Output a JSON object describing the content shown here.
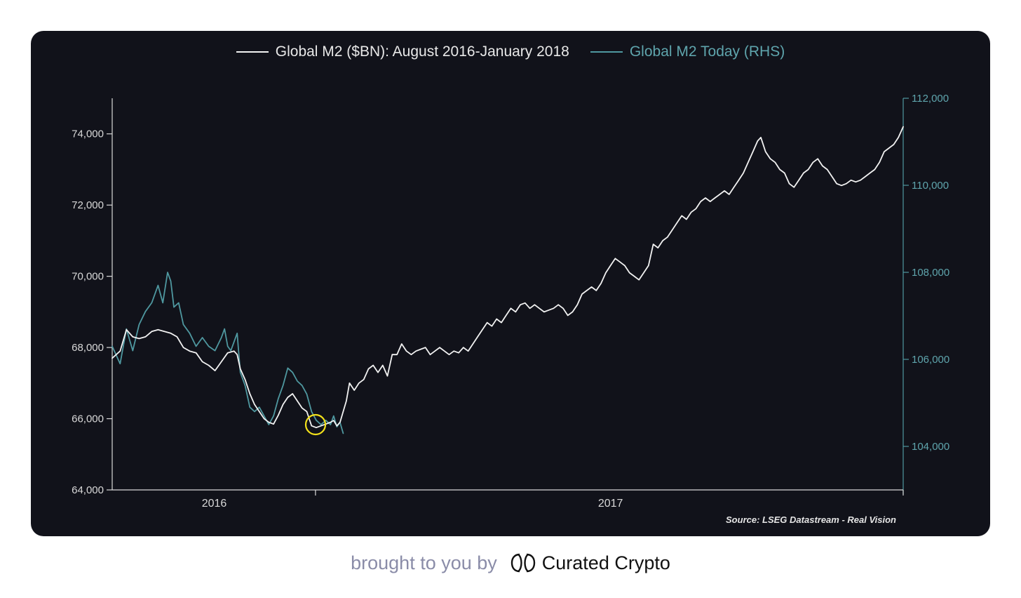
{
  "colors": {
    "background": "#11121a",
    "primary_line": "#f2f2f2",
    "secondary_line": "#4f98a0",
    "axis_left": "#d9d9d9",
    "axis_right": "#4f98a0",
    "highlight_circle": "#f3e11a",
    "footer_text": "#8a8ca8"
  },
  "chart_data": {
    "type": "line",
    "title": "",
    "legend_position": "top-center",
    "x_axis": {
      "range": [
        0,
        1
      ],
      "ticks": [
        {
          "value": 0.129,
          "label": "2016"
        },
        {
          "value": 0.257,
          "label": ""
        },
        {
          "value": 0.63,
          "label": "2017"
        }
      ]
    },
    "y_left": {
      "range": [
        64000,
        75000
      ],
      "ticks": [
        64000,
        66000,
        68000,
        70000,
        72000,
        74000
      ],
      "tick_labels": [
        "64,000",
        "66,000",
        "68,000",
        "70,000",
        "72,000",
        "74,000"
      ]
    },
    "y_right": {
      "range": [
        103000,
        112000
      ],
      "ticks": [
        104000,
        106000,
        108000,
        110000,
        112000
      ],
      "tick_labels": [
        "104,000",
        "106,000",
        "108,000",
        "110,000",
        "112,000"
      ]
    },
    "series": [
      {
        "name": "Global M2 ($BN): August 2016-January 2018",
        "axis": "left",
        "points": [
          [
            0.0,
            67700
          ],
          [
            0.01,
            67900
          ],
          [
            0.018,
            68500
          ],
          [
            0.026,
            68300
          ],
          [
            0.034,
            68250
          ],
          [
            0.042,
            68300
          ],
          [
            0.05,
            68450
          ],
          [
            0.058,
            68500
          ],
          [
            0.066,
            68450
          ],
          [
            0.074,
            68400
          ],
          [
            0.082,
            68300
          ],
          [
            0.09,
            68000
          ],
          [
            0.098,
            67900
          ],
          [
            0.106,
            67850
          ],
          [
            0.114,
            67600
          ],
          [
            0.122,
            67500
          ],
          [
            0.13,
            67350
          ],
          [
            0.138,
            67600
          ],
          [
            0.146,
            67850
          ],
          [
            0.154,
            67900
          ],
          [
            0.158,
            67800
          ],
          [
            0.162,
            67400
          ],
          [
            0.168,
            67100
          ],
          [
            0.174,
            66700
          ],
          [
            0.18,
            66400
          ],
          [
            0.186,
            66200
          ],
          [
            0.192,
            66000
          ],
          [
            0.198,
            65900
          ],
          [
            0.204,
            65850
          ],
          [
            0.21,
            66100
          ],
          [
            0.216,
            66400
          ],
          [
            0.222,
            66600
          ],
          [
            0.228,
            66700
          ],
          [
            0.234,
            66500
          ],
          [
            0.24,
            66300
          ],
          [
            0.246,
            66200
          ],
          [
            0.252,
            65800
          ],
          [
            0.258,
            65750
          ],
          [
            0.264,
            65800
          ],
          [
            0.27,
            65850
          ],
          [
            0.276,
            65900
          ],
          [
            0.28,
            65950
          ],
          [
            0.284,
            65800
          ],
          [
            0.288,
            65900
          ],
          [
            0.292,
            66200
          ],
          [
            0.296,
            66500
          ],
          [
            0.3,
            67000
          ],
          [
            0.306,
            66800
          ],
          [
            0.312,
            67000
          ],
          [
            0.318,
            67100
          ],
          [
            0.324,
            67400
          ],
          [
            0.33,
            67500
          ],
          [
            0.336,
            67300
          ],
          [
            0.342,
            67500
          ],
          [
            0.348,
            67200
          ],
          [
            0.354,
            67800
          ],
          [
            0.36,
            67800
          ],
          [
            0.366,
            68100
          ],
          [
            0.372,
            67900
          ],
          [
            0.378,
            67800
          ],
          [
            0.384,
            67900
          ],
          [
            0.39,
            67950
          ],
          [
            0.396,
            68000
          ],
          [
            0.402,
            67800
          ],
          [
            0.408,
            67900
          ],
          [
            0.414,
            68000
          ],
          [
            0.42,
            67900
          ],
          [
            0.426,
            67800
          ],
          [
            0.432,
            67900
          ],
          [
            0.438,
            67850
          ],
          [
            0.444,
            68000
          ],
          [
            0.45,
            67900
          ],
          [
            0.456,
            68100
          ],
          [
            0.462,
            68300
          ],
          [
            0.468,
            68500
          ],
          [
            0.474,
            68700
          ],
          [
            0.48,
            68600
          ],
          [
            0.486,
            68800
          ],
          [
            0.492,
            68700
          ],
          [
            0.498,
            68900
          ],
          [
            0.504,
            69100
          ],
          [
            0.51,
            69000
          ],
          [
            0.516,
            69200
          ],
          [
            0.522,
            69250
          ],
          [
            0.528,
            69100
          ],
          [
            0.534,
            69200
          ],
          [
            0.54,
            69100
          ],
          [
            0.546,
            69000
          ],
          [
            0.552,
            69050
          ],
          [
            0.558,
            69100
          ],
          [
            0.564,
            69200
          ],
          [
            0.57,
            69100
          ],
          [
            0.576,
            68900
          ],
          [
            0.582,
            69000
          ],
          [
            0.588,
            69200
          ],
          [
            0.594,
            69500
          ],
          [
            0.6,
            69600
          ],
          [
            0.606,
            69700
          ],
          [
            0.612,
            69600
          ],
          [
            0.618,
            69800
          ],
          [
            0.624,
            70100
          ],
          [
            0.63,
            70300
          ],
          [
            0.636,
            70500
          ],
          [
            0.642,
            70400
          ],
          [
            0.648,
            70300
          ],
          [
            0.654,
            70100
          ],
          [
            0.66,
            70000
          ],
          [
            0.666,
            69900
          ],
          [
            0.672,
            70100
          ],
          [
            0.678,
            70300
          ],
          [
            0.684,
            70900
          ],
          [
            0.69,
            70800
          ],
          [
            0.696,
            71000
          ],
          [
            0.702,
            71100
          ],
          [
            0.708,
            71300
          ],
          [
            0.714,
            71500
          ],
          [
            0.72,
            71700
          ],
          [
            0.726,
            71600
          ],
          [
            0.732,
            71800
          ],
          [
            0.738,
            71900
          ],
          [
            0.744,
            72100
          ],
          [
            0.75,
            72200
          ],
          [
            0.756,
            72100
          ],
          [
            0.762,
            72200
          ],
          [
            0.768,
            72300
          ],
          [
            0.774,
            72400
          ],
          [
            0.78,
            72300
          ],
          [
            0.786,
            72500
          ],
          [
            0.792,
            72700
          ],
          [
            0.798,
            72900
          ],
          [
            0.804,
            73200
          ],
          [
            0.81,
            73500
          ],
          [
            0.816,
            73800
          ],
          [
            0.82,
            73900
          ],
          [
            0.826,
            73500
          ],
          [
            0.832,
            73300
          ],
          [
            0.838,
            73200
          ],
          [
            0.844,
            73000
          ],
          [
            0.85,
            72900
          ],
          [
            0.856,
            72600
          ],
          [
            0.862,
            72500
          ],
          [
            0.868,
            72700
          ],
          [
            0.874,
            72900
          ],
          [
            0.88,
            73000
          ],
          [
            0.886,
            73200
          ],
          [
            0.892,
            73300
          ],
          [
            0.898,
            73100
          ],
          [
            0.904,
            73000
          ],
          [
            0.91,
            72800
          ],
          [
            0.916,
            72600
          ],
          [
            0.922,
            72550
          ],
          [
            0.928,
            72600
          ],
          [
            0.934,
            72700
          ],
          [
            0.94,
            72650
          ],
          [
            0.946,
            72700
          ],
          [
            0.952,
            72800
          ],
          [
            0.958,
            72900
          ],
          [
            0.964,
            73000
          ],
          [
            0.97,
            73200
          ],
          [
            0.976,
            73500
          ],
          [
            0.982,
            73600
          ],
          [
            0.988,
            73700
          ],
          [
            0.994,
            73900
          ],
          [
            1.0,
            74200
          ]
        ]
      },
      {
        "name": "Global M2 Today (RHS)",
        "axis": "right",
        "points": [
          [
            0.0,
            106300
          ],
          [
            0.01,
            105900
          ],
          [
            0.018,
            106700
          ],
          [
            0.026,
            106200
          ],
          [
            0.034,
            106800
          ],
          [
            0.042,
            107100
          ],
          [
            0.05,
            107300
          ],
          [
            0.058,
            107700
          ],
          [
            0.064,
            107300
          ],
          [
            0.07,
            108000
          ],
          [
            0.074,
            107800
          ],
          [
            0.078,
            107200
          ],
          [
            0.084,
            107300
          ],
          [
            0.09,
            106800
          ],
          [
            0.098,
            106600
          ],
          [
            0.106,
            106300
          ],
          [
            0.114,
            106500
          ],
          [
            0.122,
            106300
          ],
          [
            0.13,
            106200
          ],
          [
            0.138,
            106500
          ],
          [
            0.142,
            106700
          ],
          [
            0.146,
            106300
          ],
          [
            0.15,
            106200
          ],
          [
            0.154,
            106400
          ],
          [
            0.158,
            106600
          ],
          [
            0.162,
            105700
          ],
          [
            0.168,
            105400
          ],
          [
            0.174,
            104900
          ],
          [
            0.18,
            104800
          ],
          [
            0.186,
            104900
          ],
          [
            0.192,
            104700
          ],
          [
            0.198,
            104500
          ],
          [
            0.204,
            104700
          ],
          [
            0.21,
            105100
          ],
          [
            0.216,
            105400
          ],
          [
            0.222,
            105800
          ],
          [
            0.228,
            105700
          ],
          [
            0.234,
            105500
          ],
          [
            0.24,
            105400
          ],
          [
            0.246,
            105200
          ],
          [
            0.252,
            104800
          ],
          [
            0.258,
            104600
          ],
          [
            0.264,
            104500
          ],
          [
            0.27,
            104600
          ],
          [
            0.276,
            104500
          ],
          [
            0.28,
            104700
          ],
          [
            0.284,
            104450
          ],
          [
            0.288,
            104550
          ],
          [
            0.292,
            104300
          ]
        ]
      }
    ]
  },
  "chart": {
    "legend": [
      {
        "label": "Global M2 ($BN): August 2016-January 2018",
        "color": "#f2f2f2",
        "text_color": "#e8e8e8"
      },
      {
        "label": "Global M2 Today (RHS)",
        "color": "#4f98a0",
        "text_color": "#5fa5ad"
      }
    ],
    "source": "Source: LSEG Datastream - Real Vision"
  },
  "footer": {
    "text": "brought to you by",
    "brand_name": "Curated Crypto",
    "brand_icon": "curated-crypto-logo-icon"
  }
}
